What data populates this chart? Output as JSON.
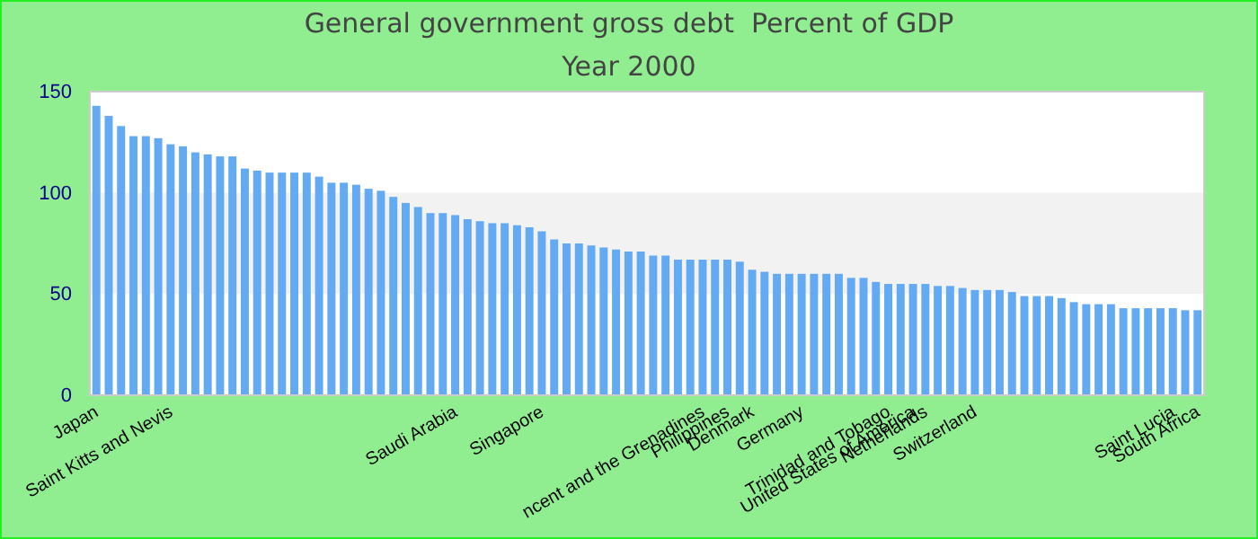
{
  "chart_data": {
    "type": "bar",
    "title": "General government gross debt  Percent of GDP",
    "subtitle": "Year 2000",
    "categories": [
      "Japan",
      null,
      null,
      null,
      null,
      null,
      "Saint Kitts and Nevis",
      null,
      null,
      null,
      null,
      null,
      null,
      null,
      null,
      null,
      null,
      null,
      null,
      null,
      null,
      null,
      null,
      null,
      null,
      null,
      null,
      null,
      null,
      "Saudi Arabia",
      null,
      null,
      null,
      null,
      null,
      null,
      "Singapore",
      null,
      null,
      null,
      null,
      null,
      null,
      null,
      null,
      null,
      null,
      null,
      null,
      "ncent and the Grenadines",
      null,
      "Philippines",
      null,
      "Denmark",
      null,
      null,
      null,
      "Germany",
      null,
      null,
      null,
      null,
      null,
      null,
      "Trinidad and Tobago",
      null,
      "United States of America",
      "Netherlands",
      null,
      null,
      null,
      "Switzerland",
      null,
      null,
      null,
      null,
      null,
      null,
      null,
      null,
      null,
      null,
      null,
      null,
      null,
      null,
      null,
      "Saint Lucia",
      null,
      "South Africa"
    ],
    "values": [
      143,
      138,
      133,
      128,
      128,
      127,
      124,
      123,
      120,
      119,
      118,
      118,
      112,
      111,
      110,
      110,
      110,
      110,
      108,
      105,
      105,
      104,
      102,
      101,
      98,
      95,
      93,
      90,
      90,
      89,
      87,
      86,
      85,
      85,
      84,
      83,
      81,
      77,
      75,
      75,
      74,
      73,
      72,
      71,
      71,
      69,
      69,
      67,
      67,
      67,
      67,
      67,
      66,
      62,
      61,
      60,
      60,
      60,
      60,
      60,
      60,
      58,
      58,
      56,
      55,
      55,
      55,
      55,
      54,
      54,
      53,
      52,
      52,
      52,
      51,
      49,
      49,
      49,
      48,
      46,
      45,
      45,
      45,
      43,
      43,
      43,
      43,
      43,
      42,
      42
    ],
    "color": "#64aaf2",
    "ylim": [
      0,
      150
    ],
    "yticks": [
      0,
      50,
      100,
      150
    ],
    "bands": [
      {
        "axis": "y",
        "from": 50,
        "to": 100,
        "color": "#f2f2f2"
      }
    ]
  }
}
